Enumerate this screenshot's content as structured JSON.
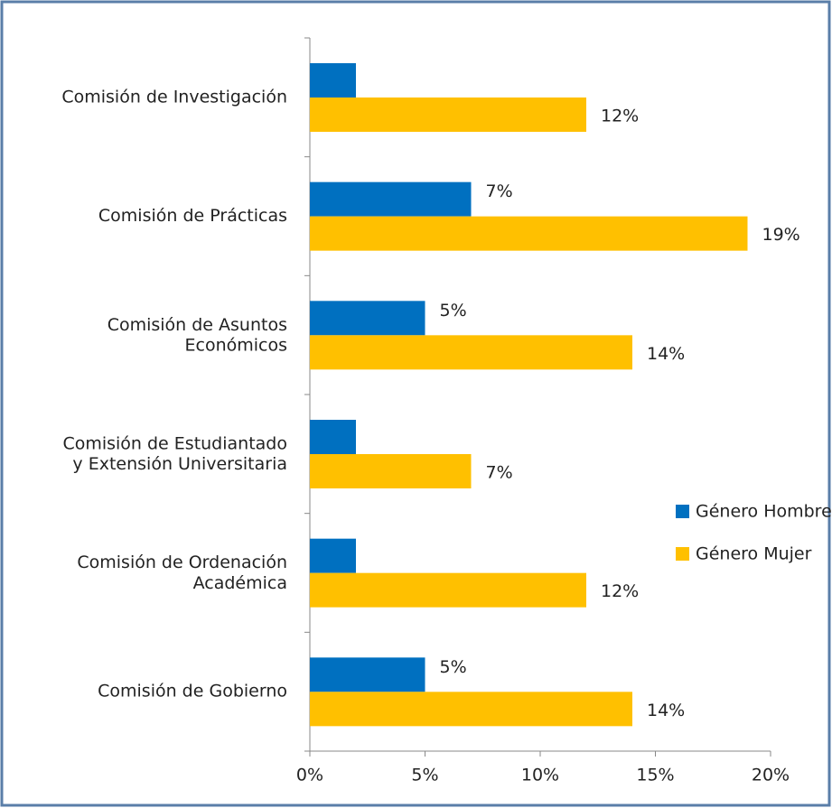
{
  "chart_data": {
    "type": "hbar",
    "categories": [
      "Comisión de Investigación",
      "Comisión de Prácticas",
      "Comisión de Asuntos\nEconómicos",
      "Comisión de Estudiantado\ny Extensión Universitaria",
      "Comisión de Ordenación\nAcadémica",
      "Comisión de Gobierno"
    ],
    "series": [
      {
        "name": "Género Hombre",
        "color": "#0070c0",
        "values": [
          2,
          7,
          5,
          2,
          2,
          5
        ],
        "value_labels": [
          null,
          "7%",
          "5%",
          null,
          null,
          "5%"
        ]
      },
      {
        "name": "Género Mujer",
        "color": "#ffc000",
        "values": [
          12,
          19,
          14,
          7,
          12,
          14
        ],
        "value_labels": [
          "12%",
          "19%",
          "14%",
          "7%",
          "12%",
          "14%"
        ]
      }
    ],
    "xlim": [
      0,
      20
    ],
    "xticks": [
      {
        "value": 0,
        "label": "0%"
      },
      {
        "value": 5,
        "label": "5%"
      },
      {
        "value": 10,
        "label": "10%"
      },
      {
        "value": 15,
        "label": "15%"
      },
      {
        "value": 20,
        "label": "20%"
      }
    ],
    "grid": false,
    "legend": "right"
  }
}
